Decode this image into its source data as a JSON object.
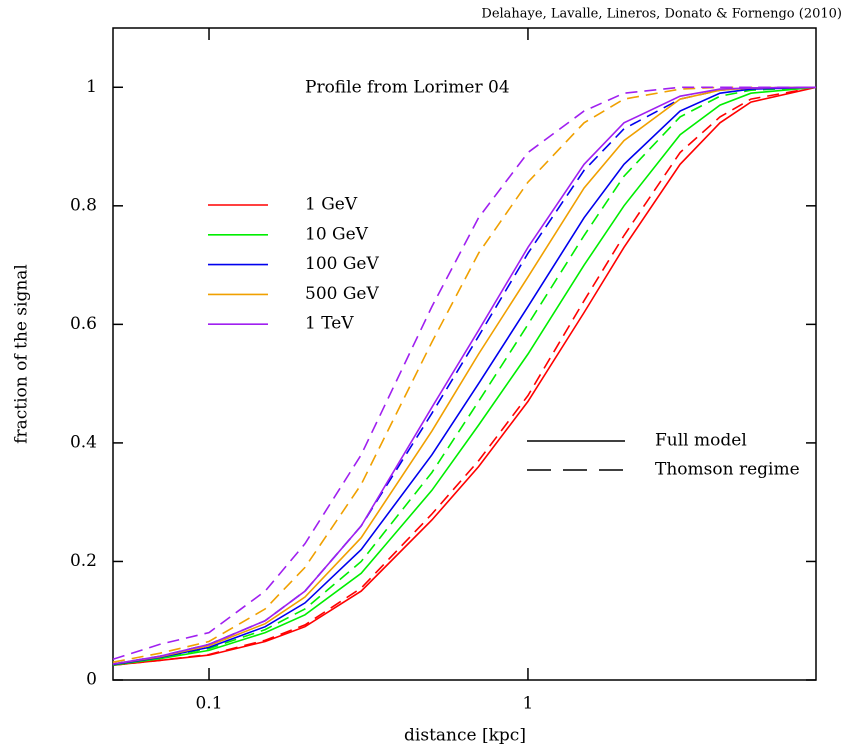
{
  "chart_data": {
    "type": "line",
    "credit": "Delahaye, Lavalle, Lineros, Donato & Fornengo (2010)",
    "annotation": "Profile from Lorimer 04",
    "xlabel": "distance  [kpc]",
    "ylabel": "fraction of the signal",
    "log_x": true,
    "xlim": [
      0.05,
      8
    ],
    "ylim": [
      0,
      1.1
    ],
    "xticks": [
      0.1,
      1
    ],
    "yticks": [
      0,
      0.2,
      0.4,
      0.6,
      0.8,
      1
    ],
    "x": [
      0.05,
      0.07,
      0.1,
      0.15,
      0.2,
      0.3,
      0.5,
      0.7,
      1,
      1.5,
      2,
      3,
      4,
      5,
      8
    ],
    "series": [
      {
        "name": "1 GeV",
        "color": "#ff0000",
        "values": [
          0.025,
          0.033,
          0.042,
          0.065,
          0.09,
          0.15,
          0.27,
          0.36,
          0.47,
          0.62,
          0.73,
          0.87,
          0.94,
          0.975,
          1
        ],
        "thomson_values": [
          0.025,
          0.033,
          0.043,
          0.067,
          0.093,
          0.155,
          0.28,
          0.37,
          0.48,
          0.64,
          0.75,
          0.89,
          0.95,
          0.98,
          1
        ]
      },
      {
        "name": "10 GeV",
        "color": "#00ee00",
        "values": [
          0.025,
          0.036,
          0.05,
          0.08,
          0.11,
          0.18,
          0.32,
          0.43,
          0.55,
          0.7,
          0.8,
          0.92,
          0.97,
          0.99,
          1
        ],
        "thomson_values": [
          0.026,
          0.038,
          0.053,
          0.085,
          0.12,
          0.2,
          0.35,
          0.47,
          0.6,
          0.75,
          0.85,
          0.95,
          0.985,
          0.995,
          1
        ]
      },
      {
        "name": "100 GeV",
        "color": "#0000ee",
        "values": [
          0.026,
          0.038,
          0.055,
          0.09,
          0.13,
          0.22,
          0.38,
          0.5,
          0.63,
          0.78,
          0.87,
          0.96,
          0.99,
          0.997,
          1
        ],
        "thomson_values": [
          0.027,
          0.04,
          0.06,
          0.1,
          0.15,
          0.26,
          0.45,
          0.58,
          0.72,
          0.86,
          0.93,
          0.98,
          0.995,
          0.999,
          1
        ]
      },
      {
        "name": "500 GeV",
        "color": "#f0a000",
        "values": [
          0.027,
          0.039,
          0.058,
          0.095,
          0.14,
          0.24,
          0.42,
          0.55,
          0.68,
          0.83,
          0.91,
          0.98,
          0.995,
          0.999,
          1
        ],
        "thomson_values": [
          0.03,
          0.045,
          0.065,
          0.12,
          0.19,
          0.33,
          0.57,
          0.72,
          0.84,
          0.94,
          0.98,
          0.997,
          1,
          1,
          1
        ]
      },
      {
        "name": "1 TeV",
        "color": "#a020f0",
        "values": [
          0.027,
          0.04,
          0.06,
          0.1,
          0.15,
          0.26,
          0.46,
          0.59,
          0.73,
          0.87,
          0.94,
          0.985,
          0.997,
          0.999,
          1
        ],
        "thomson_values": [
          0.035,
          0.06,
          0.08,
          0.15,
          0.23,
          0.38,
          0.63,
          0.78,
          0.89,
          0.96,
          0.99,
          1,
          1,
          1,
          1
        ]
      }
    ],
    "style_legend": [
      "Full model",
      "Thomson regime"
    ]
  }
}
